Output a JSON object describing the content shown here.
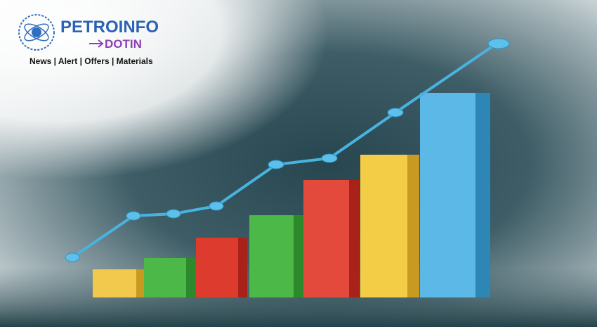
{
  "logo": {
    "name": "PETROINFO",
    "sub": "DOTIN"
  },
  "tagline": "News | Alert | Offers | Materials"
}
